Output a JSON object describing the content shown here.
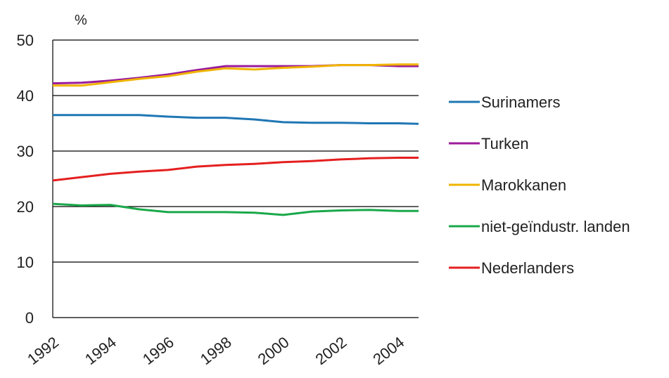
{
  "chart_data": {
    "type": "line",
    "title": "",
    "xlabel": "",
    "ylabel": "%",
    "ylim": [
      0,
      50
    ],
    "yticks": [
      0,
      10,
      20,
      30,
      40,
      50
    ],
    "xlim": [
      1992,
      2004.7
    ],
    "xticks": [
      "1992",
      "1994",
      "1996",
      "1998",
      "2000",
      "2002",
      "2004"
    ],
    "grid": true,
    "legend_position": "right",
    "series": [
      {
        "name": "Surinamers",
        "color": "#1f77b4",
        "x": [
          1992,
          1993,
          1994,
          1995,
          1996,
          1997,
          1998,
          1999,
          2000,
          2001,
          2002,
          2003,
          2004,
          2004.7
        ],
        "y": [
          36.5,
          36.5,
          36.5,
          36.5,
          36.2,
          36.0,
          36.0,
          35.7,
          35.2,
          35.1,
          35.1,
          35.0,
          35.0,
          34.9
        ]
      },
      {
        "name": "Turken",
        "color": "#9b1b9b",
        "x": [
          1992,
          1993,
          1994,
          1995,
          1996,
          1997,
          1998,
          1999,
          2000,
          2001,
          2002,
          2003,
          2004,
          2004.7
        ],
        "y": [
          42.2,
          42.3,
          42.7,
          43.2,
          43.8,
          44.6,
          45.3,
          45.3,
          45.3,
          45.3,
          45.5,
          45.5,
          45.3,
          45.3
        ]
      },
      {
        "name": "Marokkanen",
        "color": "#f0b400",
        "x": [
          1992,
          1993,
          1994,
          1995,
          1996,
          1997,
          1998,
          1999,
          2000,
          2001,
          2002,
          2003,
          2004,
          2004.7
        ],
        "y": [
          41.8,
          41.8,
          42.4,
          43.0,
          43.5,
          44.3,
          44.9,
          44.7,
          45.0,
          45.2,
          45.5,
          45.5,
          45.6,
          45.6
        ]
      },
      {
        "name": "niet-geïndustr. landen",
        "color": "#1aa84a",
        "x": [
          1992,
          1993,
          1994,
          1995,
          1996,
          1997,
          1998,
          1999,
          2000,
          2001,
          2002,
          2003,
          2004,
          2004.7
        ],
        "y": [
          20.5,
          20.2,
          20.3,
          19.5,
          19.0,
          19.0,
          19.0,
          18.9,
          18.5,
          19.1,
          19.3,
          19.4,
          19.2,
          19.2
        ]
      },
      {
        "name": "Nederlanders",
        "color": "#e51f1f",
        "x": [
          1992,
          1993,
          1994,
          1995,
          1996,
          1997,
          1998,
          1999,
          2000,
          2001,
          2002,
          2003,
          2004,
          2004.7
        ],
        "y": [
          24.7,
          25.3,
          25.9,
          26.3,
          26.6,
          27.2,
          27.5,
          27.7,
          28.0,
          28.2,
          28.5,
          28.7,
          28.8,
          28.8
        ]
      }
    ]
  }
}
